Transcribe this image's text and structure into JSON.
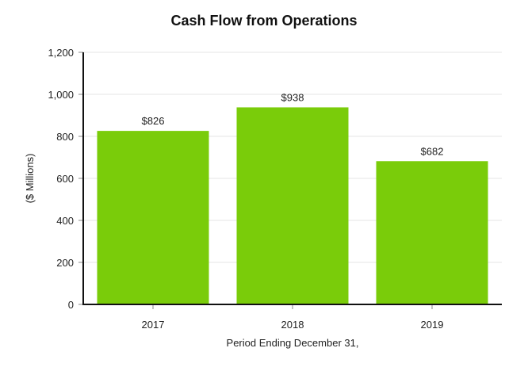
{
  "chart_data": {
    "type": "bar",
    "title": "Cash Flow from Operations",
    "xlabel": "Period Ending December 31,",
    "ylabel": "($ Millions)",
    "categories": [
      "2017",
      "2018",
      "2019"
    ],
    "values": [
      826,
      938,
      682
    ],
    "data_labels": [
      "$826",
      "$938",
      "$682"
    ],
    "ylim": [
      0,
      1200
    ],
    "yticks": [
      0,
      200,
      400,
      600,
      800,
      1000,
      1200
    ],
    "ytick_labels": [
      "0",
      "200",
      "400",
      "600",
      "800",
      "1,000",
      "1,200"
    ],
    "grid": true,
    "legend": null,
    "bar_color": "#7acc0a"
  }
}
